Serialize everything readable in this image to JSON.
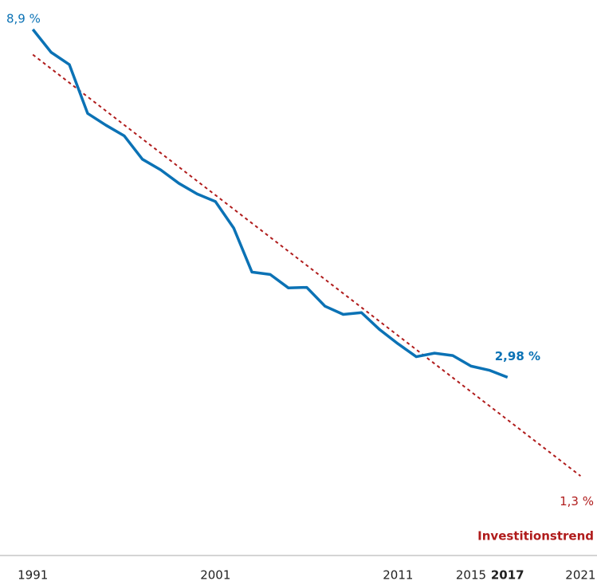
{
  "chart_data": {
    "type": "line",
    "x": [
      1991,
      1992,
      1993,
      1994,
      1995,
      1996,
      1997,
      1998,
      1999,
      2000,
      2001,
      2002,
      2003,
      2004,
      2005,
      2006,
      2007,
      2008,
      2009,
      2010,
      2011,
      2012,
      2013,
      2014,
      2015,
      2016,
      2017
    ],
    "series": [
      {
        "color": "#0b72b5",
        "values": [
          8.9,
          8.51,
          8.3,
          7.47,
          7.27,
          7.09,
          6.69,
          6.51,
          6.28,
          6.1,
          5.97,
          5.52,
          4.77,
          4.73,
          4.5,
          4.51,
          4.19,
          4.05,
          4.08,
          3.79,
          3.55,
          3.33,
          3.39,
          3.35,
          3.17,
          3.1,
          2.98
        ],
        "value_labels": {
          "0": "8,9 %",
          "26": "2,98 %"
        }
      }
    ],
    "trend": {
      "name": "Investitionstrend",
      "color": "#b01c1c",
      "x": [
        1991,
        2021
      ],
      "values": [
        8.47,
        1.3
      ],
      "end_label": "1,3 %"
    },
    "xlim": [
      1989.2,
      2021.9
    ],
    "ylim": [
      0.3,
      9.4
    ],
    "xticks": [
      1991,
      2001,
      2011,
      2015,
      2017,
      2021
    ],
    "highlight_year": 2017
  }
}
